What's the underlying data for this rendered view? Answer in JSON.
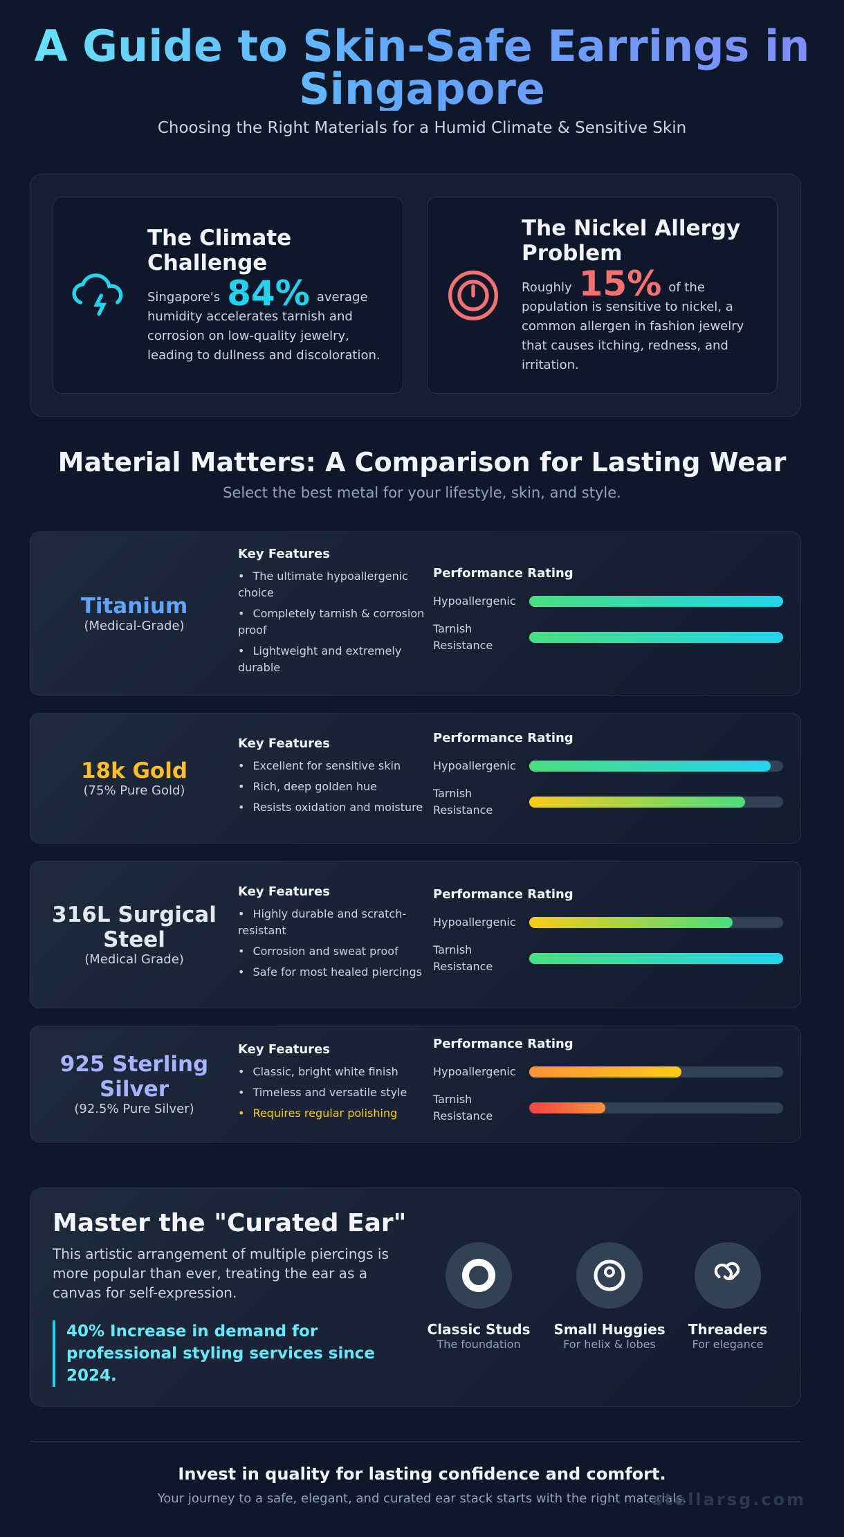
{
  "header": {
    "title": "A Guide to Skin-Safe Earrings in Singapore",
    "subtitle": "Choosing the Right Materials for a Humid Climate & Sensitive Skin"
  },
  "stats": [
    {
      "title": "The Climate Challenge",
      "lead": "Singapore's",
      "figure": "84%",
      "rest": "average humidity accelerates tarnish and corrosion on low-quality jewelry, leading to dullness and discoloration."
    },
    {
      "title": "The Nickel Allergy Problem",
      "lead": "Roughly",
      "figure": "15%",
      "rest": "of the population is sensitive to nickel, a common allergen in fashion jewelry that causes itching, redness, and irritation."
    }
  ],
  "comparison": {
    "title": "Material Matters: A Comparison for Lasting Wear",
    "subtitle": "Select the best metal for your lifestyle, skin, and style.",
    "features_heading": "Key Features",
    "rating_heading": "Performance Rating",
    "rating_labels": [
      "Hypoallergenic",
      "Tarnish Resistance"
    ],
    "xlim": [
      0,
      100
    ],
    "materials": [
      {
        "name": "Titanium",
        "grade": "(Medical-Grade)",
        "color": "#60a5fa",
        "features": [
          "The ultimate hypoallergenic choice",
          "Completely tarnish & corrosion proof",
          "Lightweight and extremely durable"
        ],
        "ratings": [
          100,
          100
        ]
      },
      {
        "name": "18k Gold",
        "grade": "(75% Pure Gold)",
        "color": "#fbbf24",
        "features": [
          "Excellent for sensitive skin",
          "Rich, deep golden hue",
          "Resists oxidation and moisture"
        ],
        "ratings": [
          95,
          85
        ]
      },
      {
        "name": "316L Surgical Steel",
        "grade": "(Medical Grade)",
        "color": "#e2e8f0",
        "features": [
          "Highly durable and scratch-resistant",
          "Corrosion and sweat proof",
          "Safe for most healed piercings"
        ],
        "ratings": [
          80,
          100
        ]
      },
      {
        "name": "925 Sterling Silver",
        "grade": "(92.5% Pure Silver)",
        "color": "#a5b4fc",
        "features": [
          "Classic, bright white finish",
          "Timeless and versatile style",
          "Requires regular polishing"
        ],
        "warning": 2,
        "ratings": [
          60,
          30
        ]
      }
    ]
  },
  "curated": {
    "title": "Master the \"Curated Ear\"",
    "text": "This artistic arrangement of multiple piercings is more popular than ever, treating the ear as a canvas for self-expression.",
    "highlight": "40% Increase in demand for professional styling services since 2024.",
    "styles": [
      {
        "name": "Classic Studs",
        "caption": "The foundation"
      },
      {
        "name": "Small Huggies",
        "caption": "For helix & lobes"
      },
      {
        "name": "Threaders",
        "caption": "For elegance"
      }
    ]
  },
  "footer": {
    "title": "Invest in quality for lasting confidence and comfort.",
    "text": "Your journey to a safe, elegant, and curated ear stack starts with the right materials.",
    "watermark": "stellarsg.com"
  }
}
